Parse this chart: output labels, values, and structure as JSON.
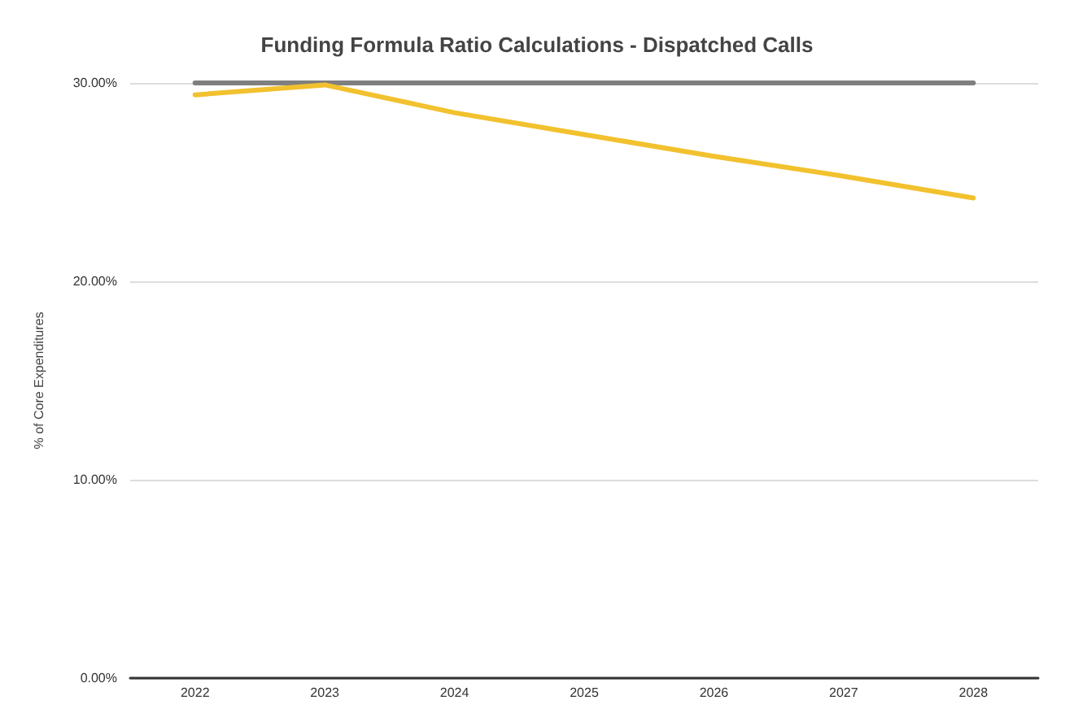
{
  "chart_data": {
    "type": "line",
    "title": "Funding Formula Ratio Calculations - Dispatched Calls",
    "ylabel": "% of Core Expenditures",
    "categories": [
      "2022",
      "2023",
      "2024",
      "2025",
      "2026",
      "2027",
      "2028"
    ],
    "series": [
      {
        "color": "#7f7f7f",
        "values": [
          30,
          30,
          30,
          30,
          30,
          30,
          30
        ]
      },
      {
        "color": "#f2c12e",
        "values": [
          29.4,
          29.9,
          28.5,
          27.4,
          26.3,
          25.3,
          24.2
        ]
      }
    ],
    "ylim": [
      0,
      30
    ],
    "yticks": [
      {
        "value": 0,
        "label": "0.00%"
      },
      {
        "value": 10,
        "label": "10.00%"
      },
      {
        "value": 20,
        "label": "20.00%"
      },
      {
        "value": 30,
        "label": "30.00%"
      }
    ],
    "grid": "y",
    "marker": "none",
    "line_style": "solid"
  }
}
